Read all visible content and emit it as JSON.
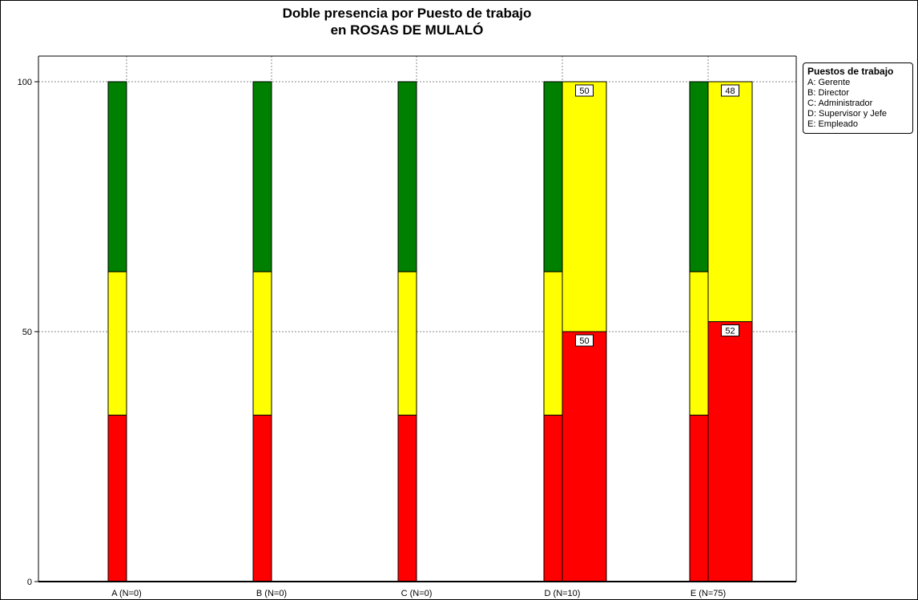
{
  "chart_data": {
    "type": "bar",
    "title": [
      "Doble presencia por Puesto de trabajo",
      "en ROSAS DE MULALÓ"
    ],
    "xlabel": "",
    "ylabel": "",
    "ylim": [
      0,
      100
    ],
    "yticks": [
      "0",
      "50",
      "100"
    ],
    "categories": [
      "A (N=0)",
      "B (N=0)",
      "C (N=0)",
      "D (N=10)",
      "E (N=75)"
    ],
    "grid": true,
    "legend_position": "right",
    "colors": {
      "green": "#008000",
      "yellow": "#ffff00",
      "red": "#ff0000"
    },
    "reference_series": [
      {
        "segment": "red",
        "value": 33.3
      },
      {
        "segment": "yellow",
        "value": 28.7
      },
      {
        "segment": "green",
        "value": 38.0
      }
    ],
    "category_series": [
      {
        "segment": "red",
        "values": [
          0,
          0,
          0,
          50,
          52
        ],
        "labels": [
          "",
          "",
          "",
          "50",
          "52"
        ]
      },
      {
        "segment": "yellow",
        "values": [
          0,
          0,
          0,
          50,
          48
        ],
        "labels": [
          "",
          "",
          "",
          "50",
          "48"
        ]
      },
      {
        "segment": "green",
        "values": [
          0,
          0,
          0,
          0,
          0
        ],
        "labels": [
          "",
          "",
          "",
          "",
          ""
        ]
      }
    ]
  },
  "legend": {
    "title": "Puestos de trabajo",
    "items": [
      "A: Gerente",
      "B: Director",
      "C: Administrador",
      "D: Supervisor y Jefe",
      "E: Empleado"
    ]
  }
}
